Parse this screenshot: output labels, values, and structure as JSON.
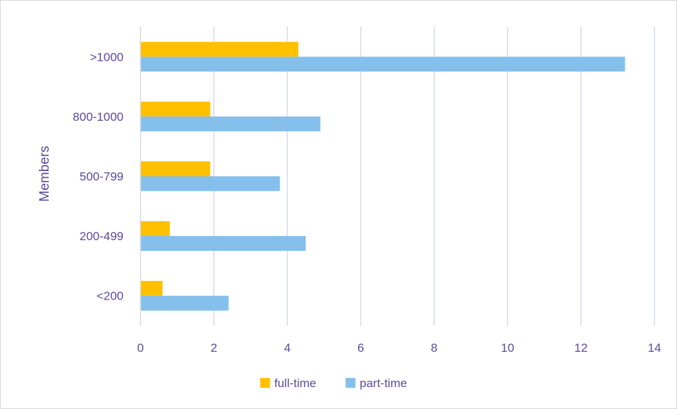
{
  "chart_data": {
    "type": "bar",
    "orientation": "horizontal",
    "categories": [
      ">1000",
      "800-1000",
      "500-799",
      "200-499",
      "<200"
    ],
    "series": [
      {
        "name": "full-time",
        "values": [
          4.3,
          1.9,
          1.9,
          0.8,
          0.6
        ],
        "color": "#FFC000"
      },
      {
        "name": "part-time",
        "values": [
          13.2,
          4.9,
          3.8,
          4.5,
          2.4
        ],
        "color": "#85BFEC"
      }
    ],
    "title": "",
    "xlabel": "",
    "ylabel": "Members",
    "xlim": [
      0,
      14
    ],
    "xticks": [
      0,
      2,
      4,
      6,
      8,
      10,
      12,
      14
    ],
    "grid": "vertical",
    "legend_position": "bottom",
    "colors": {
      "text": "#5B4A9E",
      "grid": "#D9D9F0",
      "axis": "#D9D9D9"
    }
  }
}
